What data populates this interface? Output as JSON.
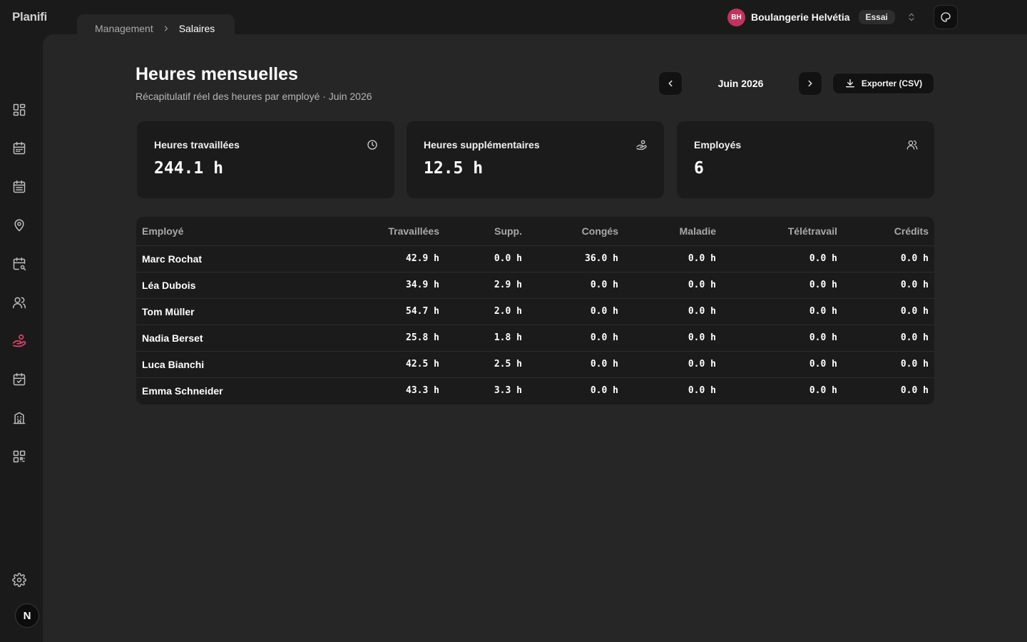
{
  "app": {
    "logo": "Planifi"
  },
  "breadcrumb": {
    "parent": "Management",
    "current": "Salaires"
  },
  "org": {
    "initials": "BH",
    "name": "Boulangerie Helvétia",
    "badge": "Essai"
  },
  "user": {
    "initial": "N"
  },
  "sidebar": {
    "items": [
      {
        "icon": "dashboard-icon"
      },
      {
        "icon": "calendar-icon"
      },
      {
        "icon": "calendar-list-icon"
      },
      {
        "icon": "location-pin-icon"
      },
      {
        "icon": "calendar-search-icon"
      },
      {
        "icon": "users-icon"
      },
      {
        "icon": "payroll-hand-icon",
        "active": true
      },
      {
        "icon": "calendar-check-icon"
      },
      {
        "icon": "building-icon"
      },
      {
        "icon": "qr-code-icon"
      }
    ],
    "settings_icon": "gear-icon",
    "accent": "#e0436f"
  },
  "page": {
    "title": "Heures mensuelles",
    "subtitle": "Récapitulatif réel des heures par employé · Juin 2026",
    "month": "Juin 2026",
    "export_label": "Exporter (CSV)"
  },
  "stats": [
    {
      "label": "Heures travaillées",
      "value": "244.1 h",
      "icon": "clock-icon"
    },
    {
      "label": "Heures supplémentaires",
      "value": "12.5 h",
      "icon": "overtime-icon"
    },
    {
      "label": "Employés",
      "value": "6",
      "icon": "users-icon"
    }
  ],
  "table": {
    "columns": [
      "Employé",
      "Travaillées",
      "Supp.",
      "Congés",
      "Maladie",
      "Télétravail",
      "Crédits"
    ],
    "rows": [
      [
        "Marc Rochat",
        "42.9 h",
        "0.0 h",
        "36.0 h",
        "0.0 h",
        "0.0 h",
        "0.0 h"
      ],
      [
        "Léa Dubois",
        "34.9 h",
        "2.9 h",
        "0.0 h",
        "0.0 h",
        "0.0 h",
        "0.0 h"
      ],
      [
        "Tom Müller",
        "54.7 h",
        "2.0 h",
        "0.0 h",
        "0.0 h",
        "0.0 h",
        "0.0 h"
      ],
      [
        "Nadia Berset",
        "25.8 h",
        "1.8 h",
        "0.0 h",
        "0.0 h",
        "0.0 h",
        "0.0 h"
      ],
      [
        "Luca Bianchi",
        "42.5 h",
        "2.5 h",
        "0.0 h",
        "0.0 h",
        "0.0 h",
        "0.0 h"
      ],
      [
        "Emma Schneider",
        "43.3 h",
        "3.3 h",
        "0.0 h",
        "0.0 h",
        "0.0 h",
        "0.0 h"
      ]
    ]
  }
}
